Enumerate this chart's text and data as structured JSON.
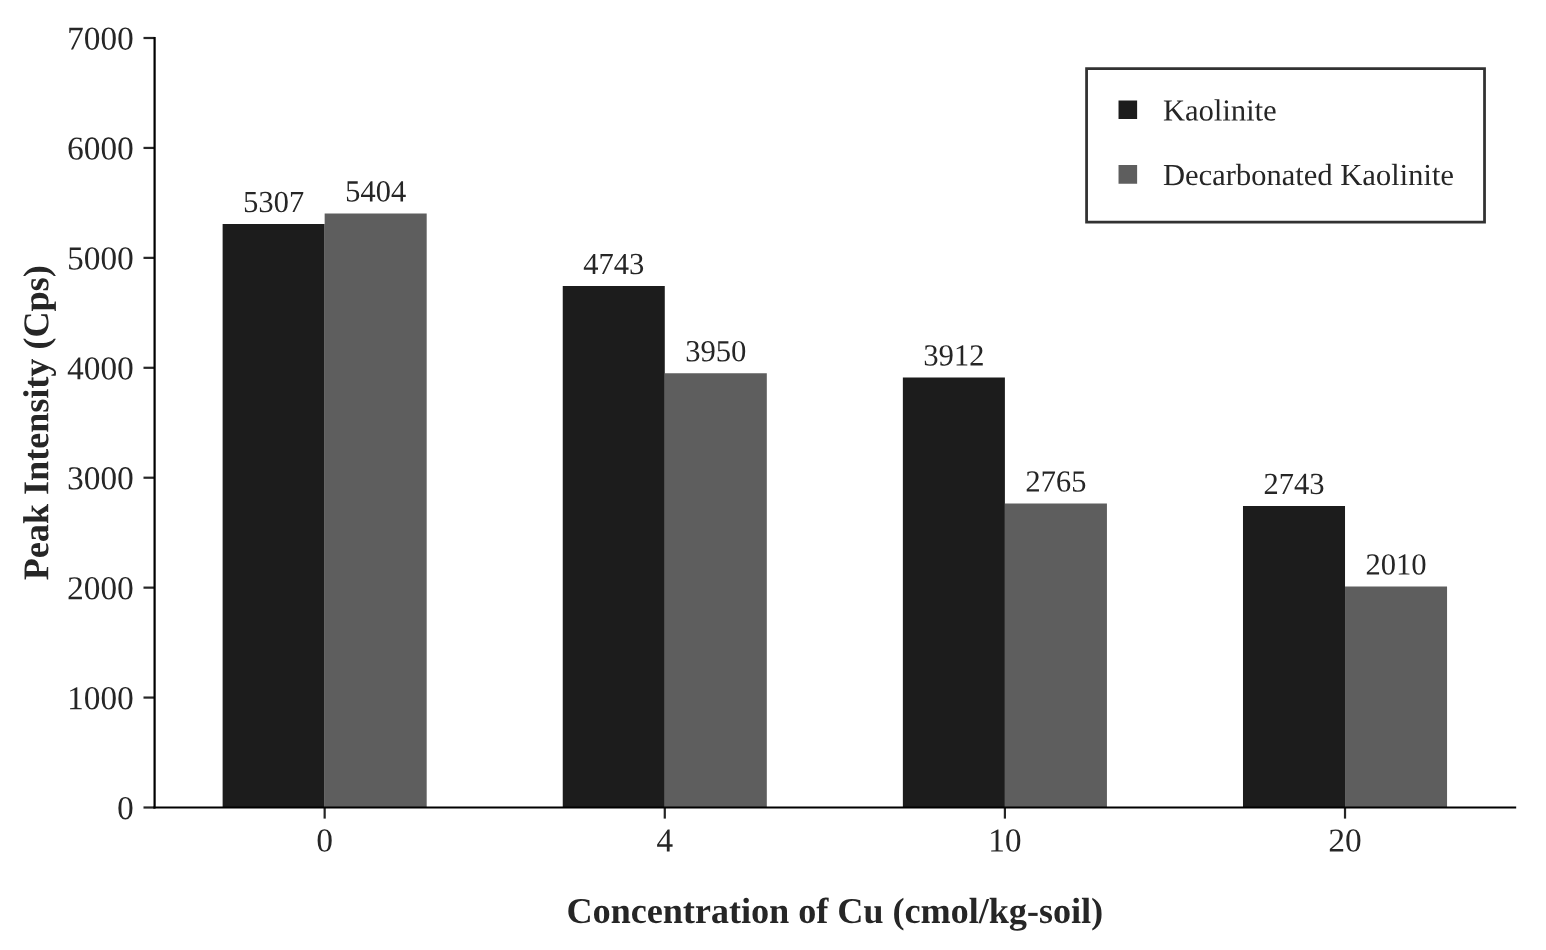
{
  "chart_data": {
    "type": "bar",
    "xlabel": "Concentration of Cu (cmol/kg-soil)",
    "ylabel": "Peak Intensity (Cps)",
    "categories": [
      "0",
      "4",
      "10",
      "20"
    ],
    "series": [
      {
        "name": "Kaolinite",
        "color": "#1c1c1c",
        "values": [
          5307,
          4743,
          3912,
          2743
        ]
      },
      {
        "name": "Decarbonated Kaolinite",
        "color": "#5e5e5e",
        "values": [
          5404,
          3950,
          2765,
          2010
        ]
      }
    ],
    "ylim": [
      0,
      7000
    ],
    "yticks": [
      0,
      1000,
      2000,
      3000,
      4000,
      5000,
      6000,
      7000
    ],
    "data_labels": true,
    "grid": false,
    "legend": "top right"
  }
}
